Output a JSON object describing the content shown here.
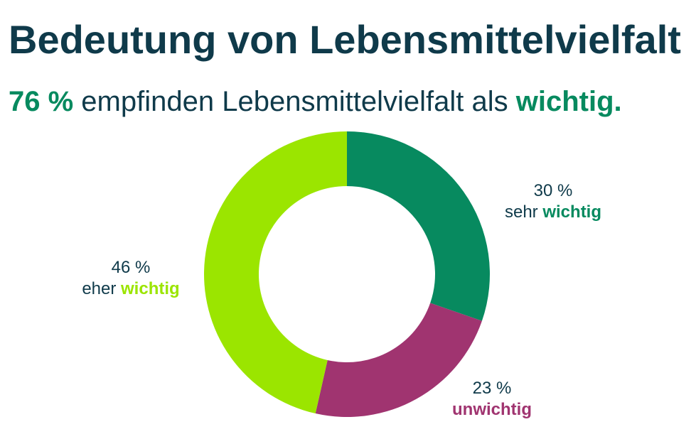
{
  "title": "Bedeutung von Lebensmittelvielfalt",
  "subtitle": {
    "highlight_value": "76 %",
    "text": "empfinden Lebensmittelvielfalt als",
    "highlight_word": "wichtig."
  },
  "colors": {
    "text": "#0f3a4a",
    "accent": "#078a5f",
    "sehr_wichtig": "#078a5f",
    "unwichtig": "#a03470",
    "eher_wichtig": "#9be500"
  },
  "chart_data": {
    "type": "pie",
    "donut": true,
    "title": "Bedeutung von Lebensmittelvielfalt",
    "slices": [
      {
        "value": 30,
        "pct_label": "30 %",
        "prefix": "sehr ",
        "word": "wichtig",
        "color": "#078a5f"
      },
      {
        "value": 23,
        "pct_label": "23 %",
        "prefix": "",
        "word": "unwichtig",
        "color": "#a03470"
      },
      {
        "value": 46,
        "pct_label": "46 %",
        "prefix": "eher ",
        "word": "wichtig",
        "color": "#9be500"
      }
    ]
  }
}
